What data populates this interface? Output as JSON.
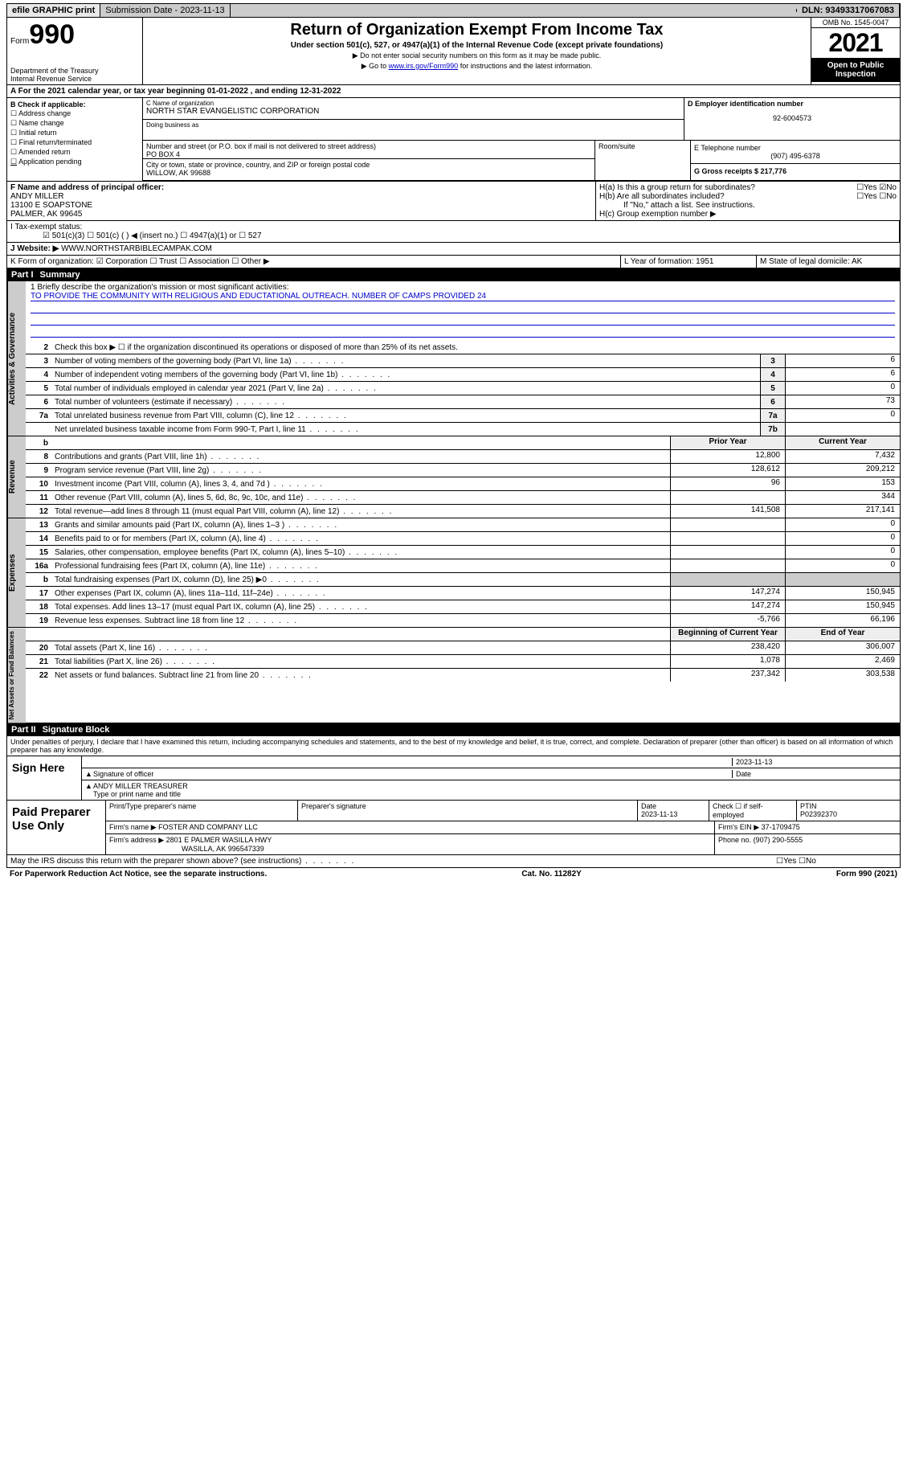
{
  "topbar": {
    "efile": "efile GRAPHIC print",
    "submission_label": "Submission Date - 2023-11-13",
    "dln": "DLN: 93493317067083"
  },
  "header": {
    "form_label": "Form",
    "form_num": "990",
    "dept": "Department of the Treasury",
    "irs": "Internal Revenue Service",
    "title": "Return of Organization Exempt From Income Tax",
    "subtitle": "Under section 501(c), 527, or 4947(a)(1) of the Internal Revenue Code (except private foundations)",
    "note1": "▶ Do not enter social security numbers on this form as it may be made public.",
    "note2_pre": "▶ Go to ",
    "note2_link": "www.irs.gov/Form990",
    "note2_post": " for instructions and the latest information.",
    "omb": "OMB No. 1545-0047",
    "year": "2021",
    "open": "Open to Public Inspection"
  },
  "line_a": "A For the 2021 calendar year, or tax year beginning 01-01-2022   , and ending 12-31-2022",
  "col_b": {
    "hdr": "B Check if applicable:",
    "items": [
      "☐ Address change",
      "☐ Name change",
      "☐ Initial return",
      "☐ Final return/terminated",
      "☐ Amended return",
      "   Application pending"
    ]
  },
  "col_c": {
    "name_lbl": "C Name of organization",
    "name_val": "NORTH STAR EVANGELISTIC CORPORATION",
    "dba_lbl": "Doing business as",
    "addr_lbl": "Number and street (or P.O. box if mail is not delivered to street address)",
    "addr_val": "PO BOX 4",
    "city_lbl": "City or town, state or province, country, and ZIP or foreign postal code",
    "city_val": "WILLOW, AK  99688",
    "room_lbl": "Room/suite"
  },
  "col_d": {
    "lbl": "D Employer identification number",
    "val": "92-6004573"
  },
  "col_e": {
    "lbl": "E Telephone number",
    "val": "(907) 495-6378"
  },
  "col_g": {
    "lbl": "G Gross receipts $ 217,776"
  },
  "col_f": {
    "lbl": "F  Name and address of principal officer:",
    "l1": "ANDY MILLER",
    "l2": "13100 E SOAPSTONE",
    "l3": "PALMER, AK  99645"
  },
  "col_h": {
    "ha": "H(a)  Is this a group return for subordinates?",
    "ha_ans": "☐Yes ☑No",
    "hb": "H(b)  Are all subordinates included?",
    "hb_ans": "☐Yes ☐No",
    "hb_note": "If \"No,\" attach a list. See instructions.",
    "hc": "H(c)  Group exemption number ▶"
  },
  "row_i": {
    "lbl": "I     Tax-exempt status:",
    "opts": "☑ 501(c)(3)    ☐  501(c) (  ) ◀ (insert no.)     ☐ 4947(a)(1) or   ☐ 527"
  },
  "row_j": {
    "lbl": "J    Website: ▶",
    "val": "WWW.NORTHSTARBIBLECAMPAK.COM"
  },
  "row_k": {
    "txt": "K Form of organization:  ☑ Corporation  ☐ Trust  ☐ Association  ☐ Other ▶"
  },
  "row_l": {
    "txt": "L Year of formation: 1951"
  },
  "row_m": {
    "txt": "M State of legal domicile: AK"
  },
  "part1": {
    "label": "Part I",
    "title": "Summary"
  },
  "mission": {
    "l1": "1  Briefly describe the organization's mission or most significant activities:",
    "txt": "TO PROVIDE THE COMMUNITY WITH RELIGIOUS AND EDUCTATIONAL OUTREACH. NUMBER OF CAMPS PROVIDED 24"
  },
  "gov_lines": [
    {
      "n": "2",
      "d": "Check this box ▶ ☐  if the organization discontinued its operations or disposed of more than 25% of its net assets."
    },
    {
      "n": "3",
      "d": "Number of voting members of the governing body (Part VI, line 1a)",
      "box": "3",
      "v": "6"
    },
    {
      "n": "4",
      "d": "Number of independent voting members of the governing body (Part VI, line 1b)",
      "box": "4",
      "v": "6"
    },
    {
      "n": "5",
      "d": "Total number of individuals employed in calendar year 2021 (Part V, line 2a)",
      "box": "5",
      "v": "0"
    },
    {
      "n": "6",
      "d": "Total number of volunteers (estimate if necessary)",
      "box": "6",
      "v": "73"
    },
    {
      "n": "7a",
      "d": "Total unrelated business revenue from Part VIII, column (C), line 12",
      "box": "7a",
      "v": "0"
    },
    {
      "n": "",
      "d": "Net unrelated business taxable income from Form 990-T, Part I, line 11",
      "box": "7b",
      "v": ""
    }
  ],
  "cols_hdr": {
    "b": "b",
    "prior": "Prior Year",
    "curr": "Current Year"
  },
  "rev_lines": [
    {
      "n": "8",
      "d": "Contributions and grants (Part VIII, line 1h)",
      "p": "12,800",
      "c": "7,432"
    },
    {
      "n": "9",
      "d": "Program service revenue (Part VIII, line 2g)",
      "p": "128,612",
      "c": "209,212"
    },
    {
      "n": "10",
      "d": "Investment income (Part VIII, column (A), lines 3, 4, and 7d )",
      "p": "96",
      "c": "153"
    },
    {
      "n": "11",
      "d": "Other revenue (Part VIII, column (A), lines 5, 6d, 8c, 9c, 10c, and 11e)",
      "p": "",
      "c": "344"
    },
    {
      "n": "12",
      "d": "Total revenue—add lines 8 through 11 (must equal Part VIII, column (A), line 12)",
      "p": "141,508",
      "c": "217,141"
    }
  ],
  "exp_lines": [
    {
      "n": "13",
      "d": "Grants and similar amounts paid (Part IX, column (A), lines 1–3 )",
      "p": "",
      "c": "0"
    },
    {
      "n": "14",
      "d": "Benefits paid to or for members (Part IX, column (A), line 4)",
      "p": "",
      "c": "0"
    },
    {
      "n": "15",
      "d": "Salaries, other compensation, employee benefits (Part IX, column (A), lines 5–10)",
      "p": "",
      "c": "0"
    },
    {
      "n": "16a",
      "d": "Professional fundraising fees (Part IX, column (A), line 11e)",
      "p": "",
      "c": "0"
    },
    {
      "n": "b",
      "d": "Total fundraising expenses (Part IX, column (D), line 25) ▶0",
      "p": "grey",
      "c": "grey"
    },
    {
      "n": "17",
      "d": "Other expenses (Part IX, column (A), lines 11a–11d, 11f–24e)",
      "p": "147,274",
      "c": "150,945"
    },
    {
      "n": "18",
      "d": "Total expenses. Add lines 13–17 (must equal Part IX, column (A), line 25)",
      "p": "147,274",
      "c": "150,945"
    },
    {
      "n": "19",
      "d": "Revenue less expenses. Subtract line 18 from line 12",
      "p": "-5,766",
      "c": "66,196"
    }
  ],
  "na_hdr": {
    "prior": "Beginning of Current Year",
    "curr": "End of Year"
  },
  "na_lines": [
    {
      "n": "20",
      "d": "Total assets (Part X, line 16)",
      "p": "238,420",
      "c": "306,007"
    },
    {
      "n": "21",
      "d": "Total liabilities (Part X, line 26)",
      "p": "1,078",
      "c": "2,469"
    },
    {
      "n": "22",
      "d": "Net assets or fund balances. Subtract line 21 from line 20",
      "p": "237,342",
      "c": "303,538"
    }
  ],
  "part2": {
    "label": "Part II",
    "title": "Signature Block"
  },
  "penalties": "Under penalties of perjury, I declare that I have examined this return, including accompanying schedules and statements, and to the best of my knowledge and belief, it is true, correct, and complete. Declaration of preparer (other than officer) is based on all information of which preparer has any knowledge.",
  "sign": {
    "here": "Sign Here",
    "sig_lbl": "Signature of officer",
    "date_lbl": "Date",
    "date_val": "2023-11-13",
    "name": "ANDY MILLER  TREASURER",
    "name_lbl": "Type or print name and title"
  },
  "paid": {
    "label": "Paid Preparer Use Only",
    "h1": "Print/Type preparer's name",
    "h2": "Preparer's signature",
    "h3": "Date",
    "h3v": "2023-11-13",
    "h4": "Check ☐ if self-employed",
    "h5": "PTIN",
    "h5v": "P02392370",
    "firm_lbl": "Firm's name    ▶",
    "firm": "FOSTER AND COMPANY LLC",
    "ein_lbl": "Firm's EIN ▶",
    "ein": "37-1709475",
    "addr_lbl": "Firm's address ▶",
    "addr1": "2801 E PALMER WASILLA HWY",
    "addr2": "WASILLA, AK  996547339",
    "phone_lbl": "Phone no.",
    "phone": "(907) 290-5555"
  },
  "may_irs": "May the IRS discuss this return with the preparer shown above? (see instructions)",
  "may_ans": "☐Yes   ☐No",
  "footer": {
    "l": "For Paperwork Reduction Act Notice, see the separate instructions.",
    "m": "Cat. No. 11282Y",
    "r": "Form 990 (2021)"
  },
  "vlabels": {
    "gov": "Activities & Governance",
    "rev": "Revenue",
    "exp": "Expenses",
    "na": "Net Assets or Fund Balances"
  }
}
